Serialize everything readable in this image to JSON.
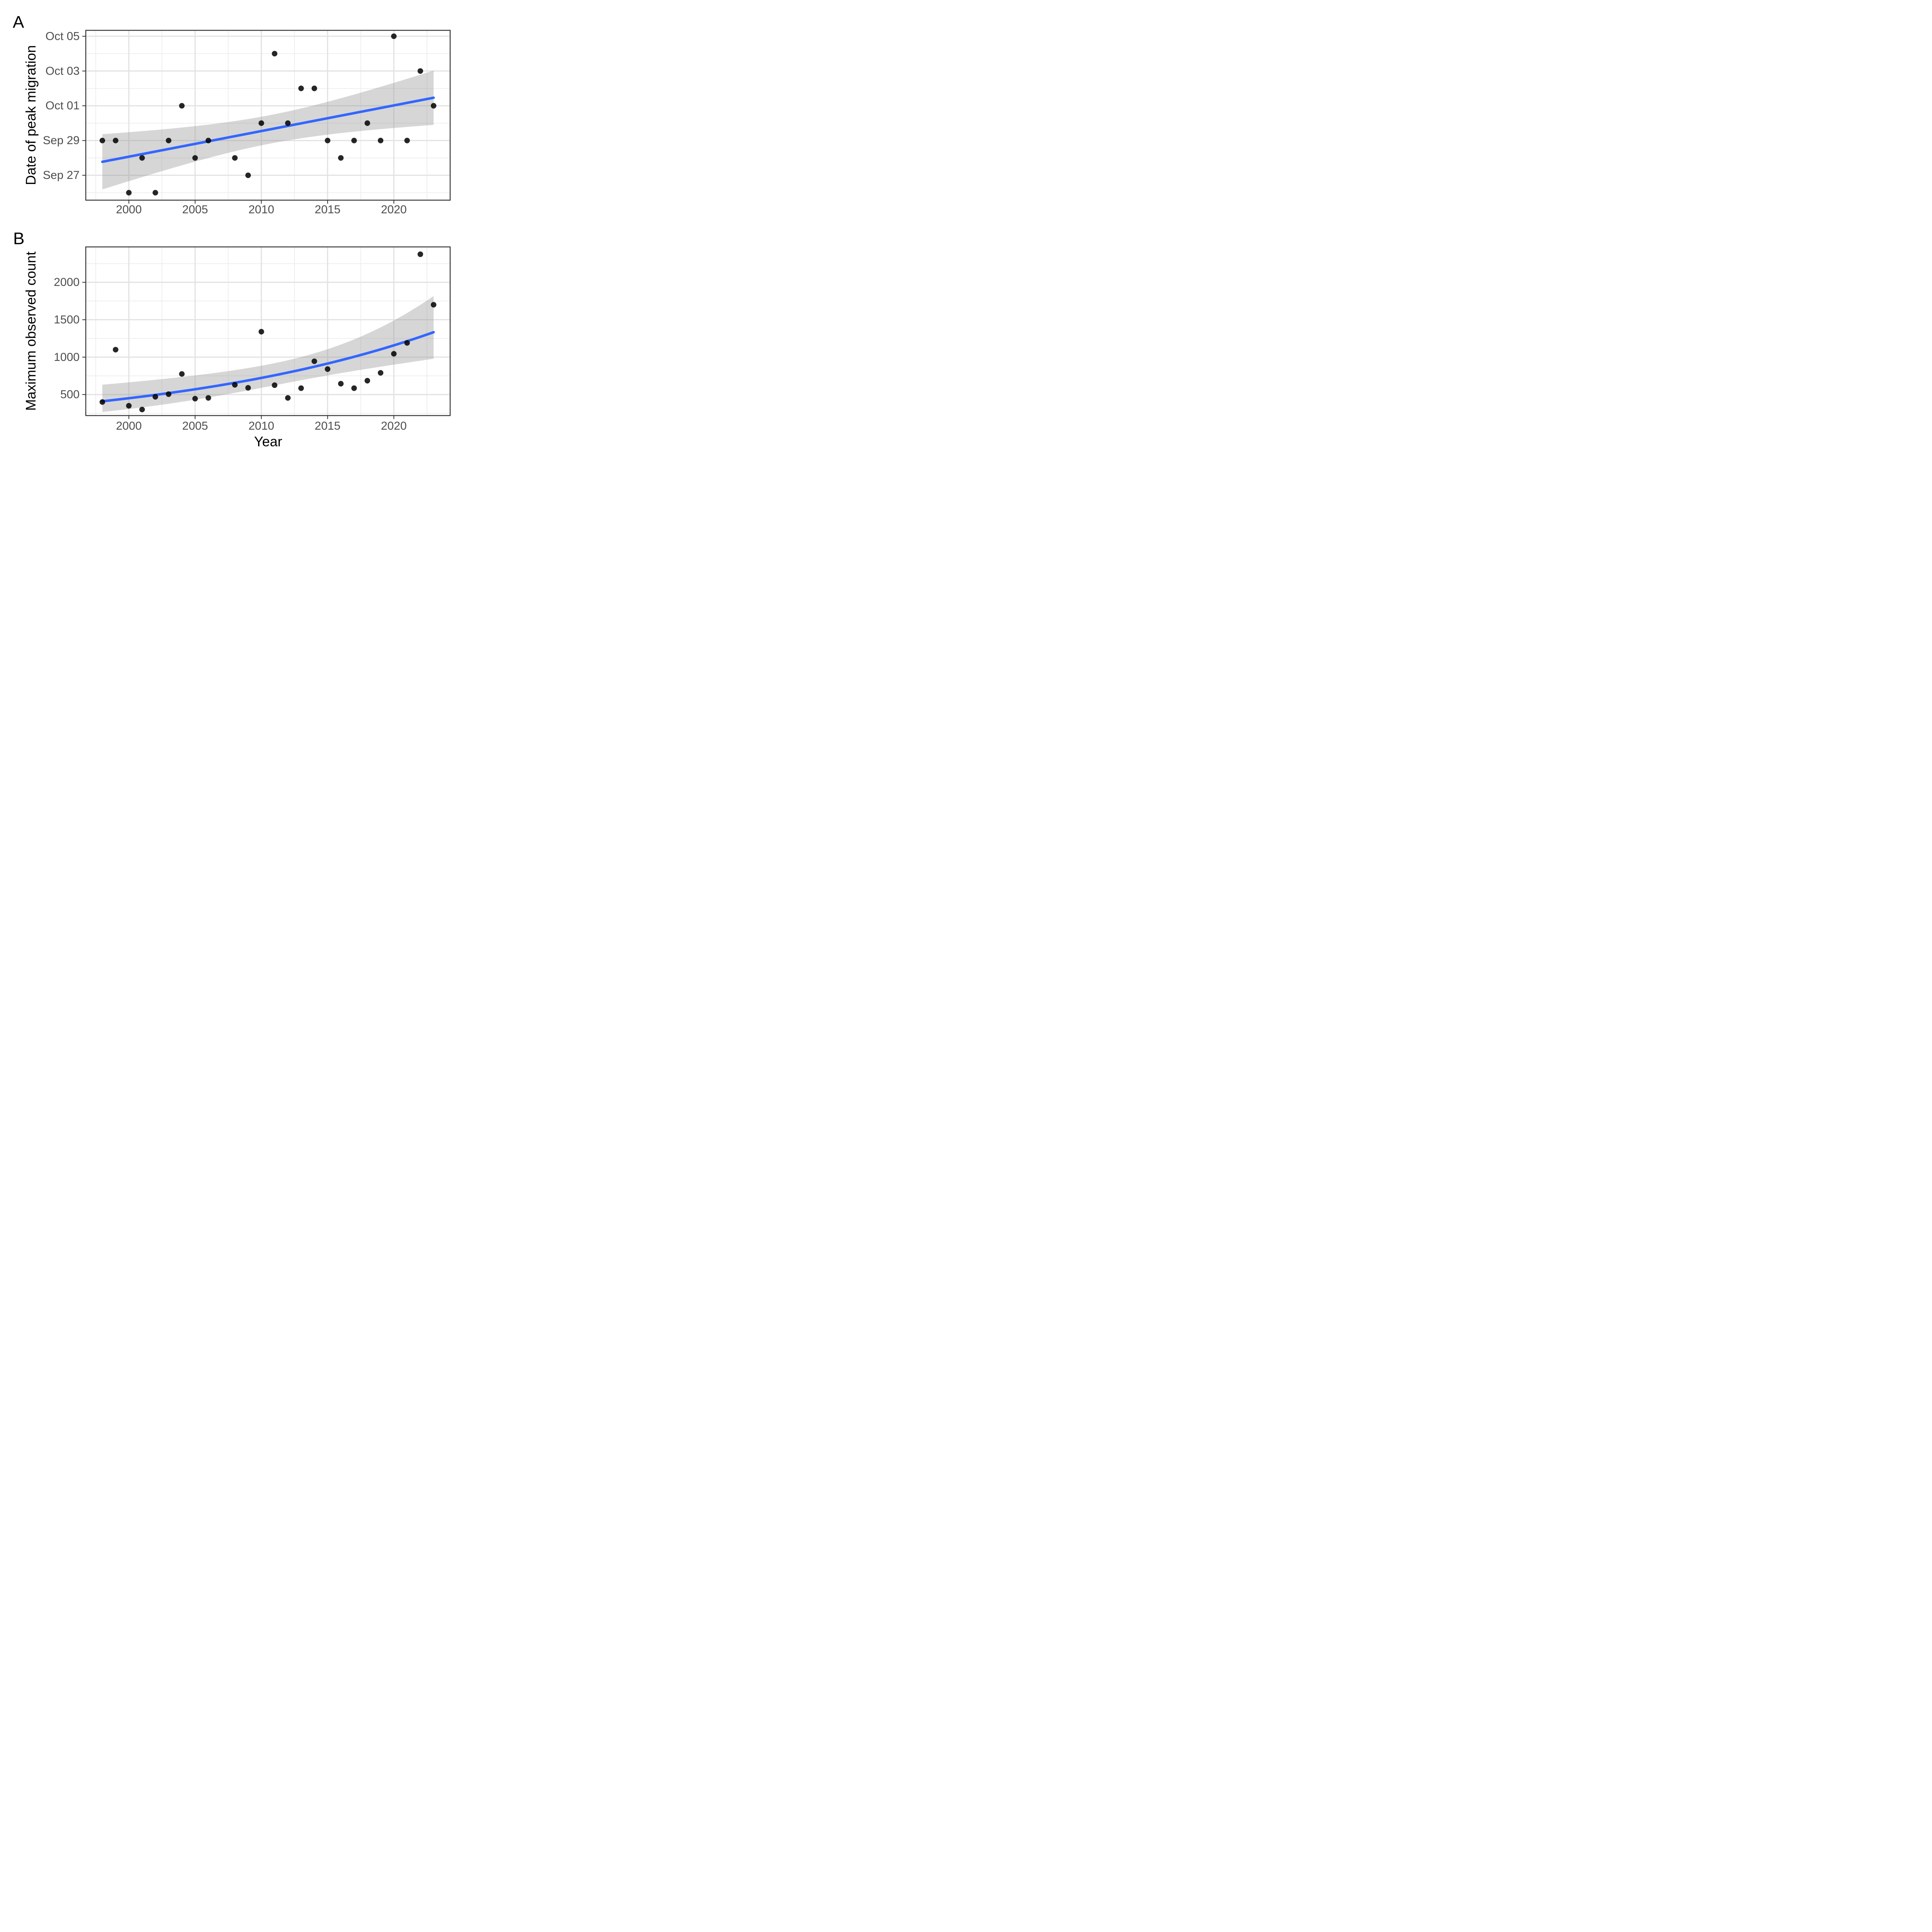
{
  "chart_data": [
    {
      "type": "scatter",
      "panel_tag": "A",
      "xlabel": "",
      "ylabel": "Date of peak migration",
      "x_ticks": [
        2000,
        2005,
        2010,
        2015,
        2020
      ],
      "x_minor": [
        1997.5,
        2002.5,
        2007.5,
        2012.5,
        2017.5,
        2022.5
      ],
      "xlim": [
        1996.75,
        2024.25
      ],
      "y_unit": "days relative to Sep 29",
      "y_ticks": [
        {
          "label": "Oct 05",
          "value": 6
        },
        {
          "label": "Oct 03",
          "value": 4
        },
        {
          "label": "Oct 01",
          "value": 2
        },
        {
          "label": "Sep 29",
          "value": 0
        },
        {
          "label": "Sep 27",
          "value": -2
        }
      ],
      "y_minor": [
        5,
        3,
        1,
        -1,
        -3
      ],
      "ylim": [
        -3.43,
        6.34
      ],
      "smooth": {
        "method": "linear regression",
        "ci_level": 0.95
      },
      "points": [
        {
          "year": 1998,
          "date": "Sep 29",
          "value": 0
        },
        {
          "year": 1999,
          "date": "Sep 29",
          "value": 0
        },
        {
          "year": 2000,
          "date": "Sep 26",
          "value": -3
        },
        {
          "year": 2001,
          "date": "Sep 28",
          "value": -1
        },
        {
          "year": 2002,
          "date": "Sep 26",
          "value": -3
        },
        {
          "year": 2003,
          "date": "Sep 29",
          "value": 0
        },
        {
          "year": 2004,
          "date": "Oct 01",
          "value": 2
        },
        {
          "year": 2005,
          "date": "Sep 28",
          "value": -1
        },
        {
          "year": 2006,
          "date": "Sep 29",
          "value": 0
        },
        {
          "year": 2008,
          "date": "Sep 28",
          "value": -1
        },
        {
          "year": 2009,
          "date": "Sep 27",
          "value": -2
        },
        {
          "year": 2010,
          "date": "Sep 30",
          "value": 1
        },
        {
          "year": 2011,
          "date": "Oct 04",
          "value": 5
        },
        {
          "year": 2012,
          "date": "Sep 30",
          "value": 1
        },
        {
          "year": 2013,
          "date": "Oct 02",
          "value": 3
        },
        {
          "year": 2014,
          "date": "Oct 02",
          "value": 3
        },
        {
          "year": 2015,
          "date": "Sep 29",
          "value": 0
        },
        {
          "year": 2016,
          "date": "Sep 28",
          "value": -1
        },
        {
          "year": 2017,
          "date": "Sep 29",
          "value": 0
        },
        {
          "year": 2018,
          "date": "Sep 30",
          "value": 1
        },
        {
          "year": 2019,
          "date": "Sep 29",
          "value": 0
        },
        {
          "year": 2020,
          "date": "Oct 05",
          "value": 6
        },
        {
          "year": 2021,
          "date": "Sep 29",
          "value": 0
        },
        {
          "year": 2022,
          "date": "Oct 03",
          "value": 4
        },
        {
          "year": 2023,
          "date": "Oct 01",
          "value": 2
        }
      ]
    },
    {
      "type": "scatter",
      "panel_tag": "B",
      "xlabel": "Year",
      "ylabel": "Maximum observed count",
      "x_ticks": [
        2000,
        2005,
        2010,
        2015,
        2020
      ],
      "x_minor": [
        1997.5,
        2002.5,
        2007.5,
        2012.5,
        2017.5,
        2022.5
      ],
      "xlim": [
        1996.75,
        2024.25
      ],
      "y_ticks": [
        {
          "label": "2000",
          "value": 2000
        },
        {
          "label": "1500",
          "value": 1500
        },
        {
          "label": "1000",
          "value": 1000
        },
        {
          "label": "500",
          "value": 500
        }
      ],
      "y_minor": [
        2250,
        1750,
        1250,
        750,
        250
      ],
      "ylim": [
        219,
        2473
      ],
      "smooth": {
        "method": "quasipoisson glm (log link)",
        "ci_level": 0.95
      },
      "points": [
        {
          "year": 1998,
          "count": 400
        },
        {
          "year": 1999,
          "count": 1100
        },
        {
          "year": 2000,
          "count": 350
        },
        {
          "year": 2001,
          "count": 300
        },
        {
          "year": 2002,
          "count": 470
        },
        {
          "year": 2003,
          "count": 505
        },
        {
          "year": 2004,
          "count": 775
        },
        {
          "year": 2005,
          "count": 445
        },
        {
          "year": 2006,
          "count": 455
        },
        {
          "year": 2008,
          "count": 630
        },
        {
          "year": 2009,
          "count": 590
        },
        {
          "year": 2010,
          "count": 1340
        },
        {
          "year": 2011,
          "count": 625
        },
        {
          "year": 2012,
          "count": 455
        },
        {
          "year": 2013,
          "count": 585
        },
        {
          "year": 2014,
          "count": 945
        },
        {
          "year": 2015,
          "count": 840
        },
        {
          "year": 2016,
          "count": 645
        },
        {
          "year": 2017,
          "count": 585
        },
        {
          "year": 2018,
          "count": 685
        },
        {
          "year": 2019,
          "count": 790
        },
        {
          "year": 2020,
          "count": 1045
        },
        {
          "year": 2021,
          "count": 1190
        },
        {
          "year": 2022,
          "count": 2375
        },
        {
          "year": 2023,
          "count": 1700
        }
      ]
    }
  ],
  "style": {
    "background": "#FFFFFF",
    "trend_color": "#3366FF",
    "band_color": "#999999",
    "band_opacity": 0.4,
    "point_color": "#000000",
    "point_opacity": 0.85,
    "grid_major": "#E2E2E2",
    "grid_minor": "#EDEDED",
    "panel_border": "#333333",
    "tick_color": "#333333",
    "tick_label_color": "#4D4D4D",
    "text_color": "#000000"
  }
}
